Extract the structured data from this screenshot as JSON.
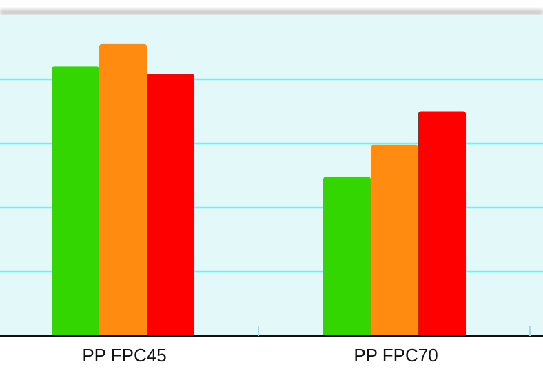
{
  "chart_data": {
    "type": "bar",
    "categories": [
      "PP FPC45",
      "PP FPC70"
    ],
    "series": [
      {
        "color": "#33d600",
        "values": [
          4.2,
          2.48
        ]
      },
      {
        "color": "#ff8c10",
        "values": [
          4.55,
          2.98
        ]
      },
      {
        "color": "#ff0000",
        "values": [
          4.08,
          3.5
        ]
      }
    ],
    "ylim": [
      0,
      5
    ],
    "grid": true,
    "colors": {
      "plot_background": "#e3f8f9",
      "gridline": "#7fe8f0",
      "axis": "#111111"
    }
  }
}
